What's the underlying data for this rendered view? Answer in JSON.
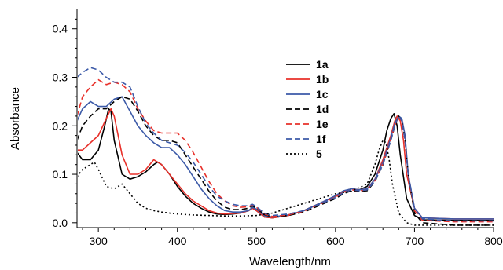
{
  "chart_data": {
    "type": "line",
    "xlabel": "Wavelength/nm",
    "ylabel": "Absorbance",
    "xlim": [
      273,
      800
    ],
    "ylim": [
      -0.01,
      0.44
    ],
    "xticks": [
      "300",
      "400",
      "500",
      "600",
      "700",
      "800"
    ],
    "yticks": [
      "0.0",
      "0.1",
      "0.2",
      "0.3",
      "0.4"
    ],
    "grid": false,
    "legend_position": "center",
    "series": [
      {
        "name": "1a",
        "color": "#000000",
        "dash": "solid",
        "x": [
          273,
          280,
          290,
          300,
          308,
          313,
          316,
          320,
          330,
          340,
          350,
          360,
          370,
          375,
          380,
          390,
          400,
          410,
          420,
          430,
          440,
          450,
          460,
          470,
          480,
          490,
          495,
          500,
          510,
          520,
          540,
          560,
          580,
          600,
          610,
          620,
          630,
          640,
          650,
          660,
          665,
          670,
          674,
          678,
          682,
          690,
          700,
          710,
          750,
          800
        ],
        "y": [
          0.145,
          0.13,
          0.13,
          0.15,
          0.2,
          0.235,
          0.23,
          0.17,
          0.1,
          0.09,
          0.095,
          0.105,
          0.12,
          0.125,
          0.12,
          0.1,
          0.075,
          0.055,
          0.04,
          0.03,
          0.022,
          0.018,
          0.017,
          0.018,
          0.02,
          0.025,
          0.03,
          0.025,
          0.012,
          0.01,
          0.015,
          0.025,
          0.04,
          0.055,
          0.065,
          0.07,
          0.068,
          0.075,
          0.1,
          0.15,
          0.19,
          0.215,
          0.225,
          0.2,
          0.14,
          0.05,
          0.015,
          0.006,
          0.005,
          0.005
        ]
      },
      {
        "name": "1b",
        "color": "#e8302a",
        "dash": "solid",
        "x": [
          273,
          280,
          290,
          300,
          310,
          316,
          320,
          330,
          340,
          350,
          360,
          370,
          380,
          390,
          400,
          410,
          420,
          430,
          440,
          450,
          460,
          470,
          480,
          490,
          495,
          500,
          510,
          520,
          540,
          560,
          580,
          600,
          610,
          620,
          630,
          640,
          650,
          660,
          670,
          675,
          678,
          682,
          686,
          690,
          700,
          710,
          750,
          800
        ],
        "y": [
          0.15,
          0.15,
          0.165,
          0.18,
          0.215,
          0.235,
          0.22,
          0.14,
          0.1,
          0.1,
          0.11,
          0.13,
          0.12,
          0.1,
          0.08,
          0.06,
          0.045,
          0.035,
          0.025,
          0.02,
          0.018,
          0.019,
          0.02,
          0.025,
          0.03,
          0.025,
          0.012,
          0.01,
          0.015,
          0.025,
          0.04,
          0.055,
          0.065,
          0.07,
          0.068,
          0.07,
          0.09,
          0.13,
          0.18,
          0.21,
          0.22,
          0.21,
          0.17,
          0.1,
          0.03,
          0.01,
          0.008,
          0.008
        ]
      },
      {
        "name": "1c",
        "color": "#3c5aa8",
        "dash": "solid",
        "x": [
          273,
          280,
          290,
          300,
          310,
          320,
          330,
          340,
          350,
          360,
          370,
          380,
          390,
          400,
          410,
          420,
          430,
          440,
          450,
          460,
          470,
          480,
          490,
          495,
          500,
          510,
          520,
          540,
          560,
          580,
          600,
          610,
          620,
          630,
          640,
          650,
          660,
          670,
          675,
          680,
          684,
          688,
          692,
          700,
          710,
          750,
          800
        ],
        "y": [
          0.21,
          0.235,
          0.25,
          0.24,
          0.24,
          0.255,
          0.26,
          0.23,
          0.2,
          0.18,
          0.165,
          0.155,
          0.155,
          0.14,
          0.12,
          0.095,
          0.07,
          0.05,
          0.035,
          0.025,
          0.022,
          0.022,
          0.025,
          0.032,
          0.028,
          0.015,
          0.012,
          0.016,
          0.025,
          0.04,
          0.056,
          0.066,
          0.07,
          0.068,
          0.07,
          0.09,
          0.125,
          0.175,
          0.205,
          0.22,
          0.215,
          0.18,
          0.1,
          0.03,
          0.01,
          0.008,
          0.008
        ]
      },
      {
        "name": "1d",
        "color": "#000000",
        "dash": "7,4",
        "x": [
          273,
          280,
          290,
          300,
          310,
          320,
          330,
          340,
          350,
          360,
          370,
          380,
          390,
          400,
          410,
          420,
          430,
          440,
          450,
          460,
          470,
          480,
          490,
          495,
          500,
          510,
          520,
          540,
          560,
          580,
          600,
          610,
          620,
          630,
          640,
          650,
          660,
          670,
          676,
          680,
          684,
          688,
          692,
          700,
          710,
          750,
          800
        ],
        "y": [
          0.17,
          0.2,
          0.22,
          0.235,
          0.235,
          0.25,
          0.26,
          0.255,
          0.23,
          0.2,
          0.18,
          0.17,
          0.17,
          0.165,
          0.14,
          0.115,
          0.09,
          0.065,
          0.045,
          0.032,
          0.027,
          0.027,
          0.03,
          0.035,
          0.03,
          0.017,
          0.012,
          0.015,
          0.022,
          0.036,
          0.05,
          0.06,
          0.066,
          0.065,
          0.066,
          0.085,
          0.12,
          0.17,
          0.205,
          0.22,
          0.21,
          0.17,
          0.1,
          0.02,
          0.0,
          -0.005,
          -0.005
        ]
      },
      {
        "name": "1e",
        "color": "#e8302a",
        "dash": "7,4",
        "x": [
          273,
          280,
          290,
          300,
          310,
          320,
          330,
          340,
          350,
          360,
          370,
          380,
          390,
          400,
          410,
          420,
          430,
          440,
          450,
          460,
          470,
          480,
          490,
          495,
          500,
          510,
          520,
          540,
          560,
          580,
          600,
          610,
          620,
          630,
          640,
          650,
          660,
          670,
          676,
          680,
          684,
          688,
          692,
          700,
          710,
          750,
          800
        ],
        "y": [
          0.22,
          0.26,
          0.28,
          0.295,
          0.285,
          0.29,
          0.285,
          0.27,
          0.235,
          0.21,
          0.19,
          0.185,
          0.185,
          0.185,
          0.17,
          0.145,
          0.115,
          0.085,
          0.06,
          0.045,
          0.035,
          0.032,
          0.033,
          0.037,
          0.032,
          0.018,
          0.013,
          0.016,
          0.024,
          0.038,
          0.053,
          0.063,
          0.068,
          0.066,
          0.068,
          0.087,
          0.122,
          0.172,
          0.205,
          0.218,
          0.21,
          0.17,
          0.1,
          0.025,
          0.005,
          0.002,
          0.002
        ]
      },
      {
        "name": "1f",
        "color": "#3c5aa8",
        "dash": "7,4",
        "x": [
          273,
          280,
          290,
          300,
          310,
          320,
          330,
          340,
          350,
          360,
          370,
          380,
          390,
          400,
          410,
          420,
          430,
          440,
          450,
          460,
          470,
          480,
          490,
          495,
          500,
          510,
          520,
          540,
          560,
          580,
          600,
          610,
          620,
          630,
          640,
          650,
          660,
          670,
          676,
          680,
          684,
          688,
          692,
          700,
          710,
          750,
          800
        ],
        "y": [
          0.3,
          0.31,
          0.32,
          0.315,
          0.3,
          0.29,
          0.29,
          0.28,
          0.24,
          0.205,
          0.185,
          0.17,
          0.165,
          0.16,
          0.145,
          0.125,
          0.1,
          0.075,
          0.055,
          0.045,
          0.038,
          0.035,
          0.035,
          0.038,
          0.033,
          0.02,
          0.015,
          0.018,
          0.025,
          0.038,
          0.052,
          0.062,
          0.068,
          0.066,
          0.068,
          0.086,
          0.12,
          0.17,
          0.205,
          0.22,
          0.21,
          0.17,
          0.1,
          0.03,
          0.008,
          0.004,
          0.004
        ]
      },
      {
        "name": "5",
        "color": "#000000",
        "dash": "2,3",
        "x": [
          273,
          280,
          290,
          295,
          300,
          310,
          320,
          330,
          340,
          350,
          360,
          370,
          380,
          390,
          400,
          420,
          440,
          460,
          480,
          500,
          520,
          540,
          560,
          580,
          600,
          620,
          640,
          650,
          655,
          660,
          664,
          668,
          672,
          680,
          690,
          700,
          750,
          800
        ],
        "y": [
          0.095,
          0.11,
          0.12,
          0.125,
          0.11,
          0.075,
          0.07,
          0.08,
          0.06,
          0.04,
          0.03,
          0.025,
          0.022,
          0.02,
          0.018,
          0.016,
          0.015,
          0.014,
          0.014,
          0.015,
          0.02,
          0.03,
          0.04,
          0.05,
          0.06,
          0.065,
          0.08,
          0.12,
          0.15,
          0.17,
          0.165,
          0.13,
          0.08,
          0.02,
          0.0,
          -0.005,
          -0.005,
          -0.005
        ]
      }
    ]
  }
}
